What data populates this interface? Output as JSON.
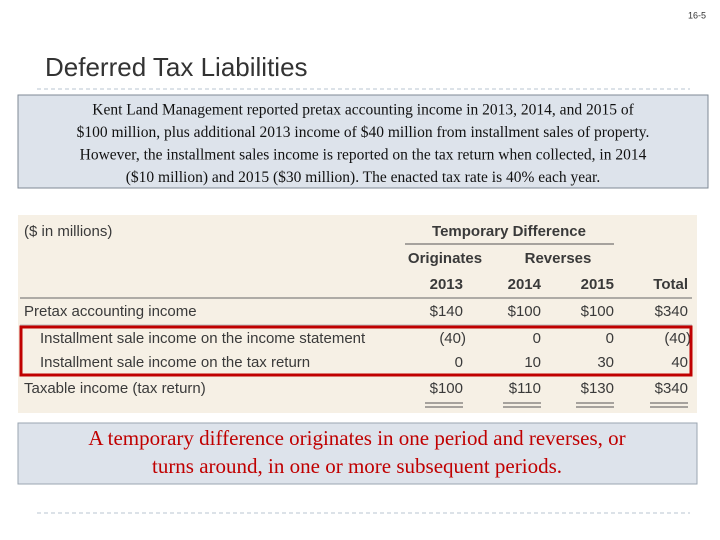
{
  "slide_number": "16-5",
  "header": {
    "title": "Deferred Tax Liabilities"
  },
  "intro": {
    "lines": [
      "Kent Land Management reported pretax accounting income in 2013, 2014, and 2015 of",
      "$100 million, plus additional 2013 income of $40 million from installment sales of property.",
      "However, the installment sales income is reported on the tax return when collected, in 2014",
      "($10 million) and 2015 ($30 million). The enacted tax rate is 40% each year."
    ]
  },
  "table": {
    "unit_note": "($ in millions)",
    "group_header": "Temporary Difference",
    "subheaders": [
      "Originates",
      "Reverses"
    ],
    "columns": [
      "2013",
      "2014",
      "2015",
      "Total"
    ],
    "rows": [
      [
        "Pretax accounting income",
        "$140",
        "$100",
        "$100",
        "$340"
      ],
      [
        "Installment sale income on the income statement",
        "(40)",
        "0",
        "0",
        "(40)"
      ],
      [
        "Installment sale income on the tax return",
        "0",
        "10",
        "30",
        "40"
      ],
      [
        "Taxable income (tax return)",
        "$100",
        "$110",
        "$130",
        "$340"
      ]
    ]
  },
  "footer_note": {
    "lines": [
      "A temporary difference originates in one period and reverses, or",
      "turns around, in one or more subsequent periods."
    ]
  }
}
